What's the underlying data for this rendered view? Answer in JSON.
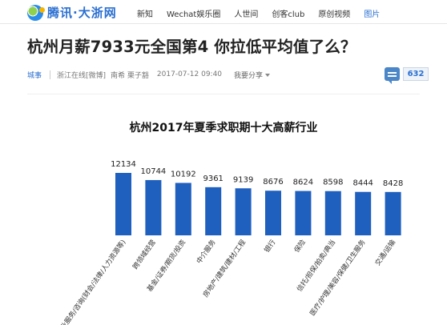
{
  "header": {
    "logo_text": "腾讯·大浙网",
    "nav": [
      "新知",
      "Wechat娱乐圈",
      "人世间",
      "创客club",
      "原创视频",
      "图片"
    ],
    "nav_active_index": 5
  },
  "article": {
    "title": "杭州月薪7933元全国第4 你拉低平均值了么？",
    "category": "城事",
    "source": "浙江在线[微博]",
    "authors": "南希 栗子豁",
    "time": "2017-07-12 09:40",
    "share_label": "我要分享",
    "comment_count": "632"
  },
  "colors": {
    "bar": "#1f5fbe",
    "accent": "#2a6fd1"
  },
  "chart_data": {
    "type": "bar",
    "title": "杭州2017年夏季求职期十大高薪行业",
    "categories": [
      "专业服务/咨询(财会/法律/人力资源等)",
      "跨领域经营",
      "基金/证券/期货/投资",
      "中介服务",
      "房地产/建筑/建材/工程",
      "银行",
      "保险",
      "信托/担保/拍卖/典当",
      "医疗/护理/美容/保健/卫生服务",
      "交通/运输"
    ],
    "values": [
      12134,
      10744,
      10192,
      9361,
      9139,
      8676,
      8624,
      8598,
      8444,
      8428
    ],
    "xlabel": "",
    "ylabel": "",
    "grid": false,
    "legend": "none"
  }
}
